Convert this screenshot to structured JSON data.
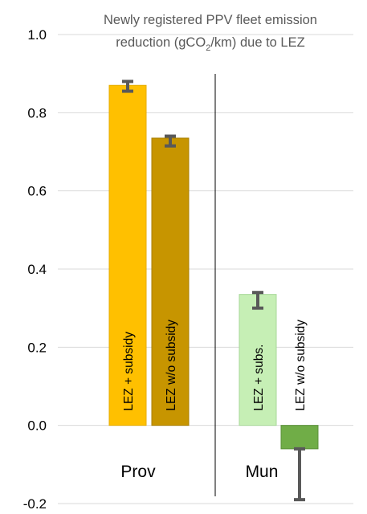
{
  "chart_data": {
    "type": "bar",
    "title_line1": "Newly registered PPV fleet emission",
    "title_line2_pre": "reduction (gCO",
    "title_line2_sub": "2",
    "title_line2_post": "/km) due to LEZ",
    "ylim": [
      -0.2,
      1.0
    ],
    "yticks": [
      "1.0",
      "0.8",
      "0.6",
      "0.4",
      "0.2",
      "0.0",
      "-0.2"
    ],
    "ytick_values": [
      1.0,
      0.8,
      0.6,
      0.4,
      0.2,
      0.0,
      -0.2
    ],
    "grid": true,
    "groups": [
      "Prov",
      "Mun"
    ],
    "bars": [
      {
        "group": "Prov",
        "label": "LEZ + subsidy",
        "value": 0.87,
        "err_low": 0.855,
        "err_high": 0.88,
        "color": "#ffc000",
        "edge": "#e5ac00"
      },
      {
        "group": "Prov",
        "label": "LEZ w/o subsidy",
        "value": 0.735,
        "err_low": 0.715,
        "err_high": 0.74,
        "color": "#c79500",
        "edge": "#a87e00"
      },
      {
        "group": "Mun",
        "label": "LEZ + subs.",
        "value": 0.335,
        "err_low": 0.3,
        "err_high": 0.34,
        "color": "#c6efb5",
        "edge": "#a8d99a"
      },
      {
        "group": "Mun",
        "label": "LEZ w/o subsidy",
        "value": -0.06,
        "err_low": -0.19,
        "err_high": -0.06,
        "color": "#70ad47",
        "edge": "#5a9038"
      }
    ],
    "error_bar_color": "#595959"
  }
}
